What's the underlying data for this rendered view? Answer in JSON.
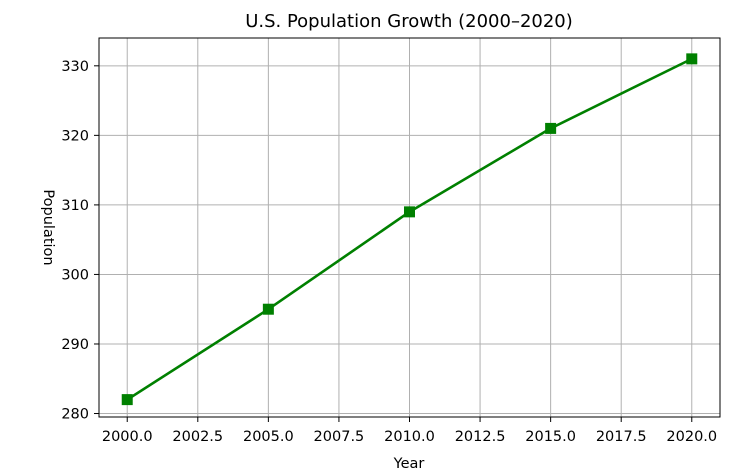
{
  "chart_data": {
    "type": "line",
    "title": "U.S. Population Growth (2000–2020)",
    "xlabel": "Year",
    "ylabel": "Population",
    "ylabel_orientation": "upside-down",
    "xlim": [
      1999.0,
      2021.0
    ],
    "ylim": [
      279.5,
      334.0
    ],
    "xticks": [
      2000.0,
      2002.5,
      2005.0,
      2007.5,
      2010.0,
      2012.5,
      2015.0,
      2017.5,
      2020.0
    ],
    "xtick_labels": [
      "2000.0",
      "2002.5",
      "2005.0",
      "2007.5",
      "2010.0",
      "2012.5",
      "2015.0",
      "2017.5",
      "2020.0"
    ],
    "yticks": [
      280,
      290,
      300,
      310,
      320,
      330
    ],
    "ytick_labels": [
      "280",
      "290",
      "300",
      "310",
      "320",
      "330"
    ],
    "grid": true,
    "legend": "none",
    "series": [
      {
        "x": [
          2000,
          2005,
          2010,
          2015,
          2020
        ],
        "values": [
          282,
          295,
          309,
          321,
          331
        ],
        "color": "#008000",
        "marker": "square"
      }
    ]
  }
}
